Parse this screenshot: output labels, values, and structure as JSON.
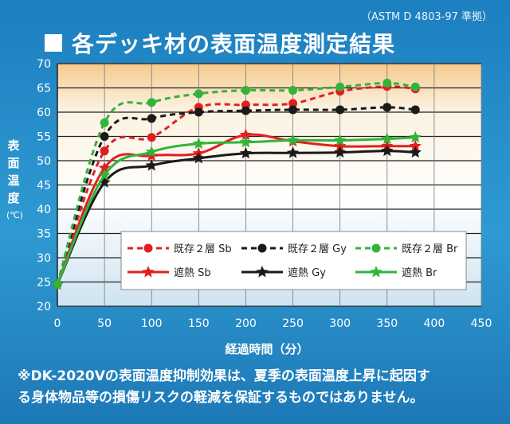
{
  "header": {
    "standard_note": "（ASTM D 4803-97 準拠）",
    "title": "各デッキ材の表面温度測定結果"
  },
  "footnote": {
    "line1": "※DK-2020Vの表面温度抑制効果は、夏季の表面温度上昇に起因す",
    "line2": "る身体物品等の損傷リスクの軽減を保証するものではありません。"
  },
  "chart_data": {
    "type": "line",
    "xlabel": "経過時間（分）",
    "ylabel": [
      "表",
      "面",
      "温",
      "度"
    ],
    "ylabel_unit": "(℃)",
    "xlim": [
      0,
      450
    ],
    "ylim": [
      20,
      70
    ],
    "x_ticks": [
      0,
      50,
      100,
      150,
      200,
      250,
      300,
      350,
      400,
      450
    ],
    "y_ticks": [
      20,
      25,
      30,
      35,
      40,
      45,
      50,
      55,
      60,
      65,
      70
    ],
    "grid": true,
    "legend_position": "bottom-right",
    "series": [
      {
        "name": "既存２層 Sb",
        "color": "#e02020",
        "style": "dashed",
        "marker": "circle",
        "x": [
          0,
          50,
          100,
          150,
          200,
          250,
          300,
          350,
          380
        ],
        "y": [
          24.5,
          52,
          54.8,
          61,
          61.5,
          61.8,
          64.3,
          65.3,
          64.8
        ]
      },
      {
        "name": "既存２層 Gy",
        "color": "#1a1a1a",
        "style": "dashed",
        "marker": "circle",
        "x": [
          0,
          50,
          100,
          150,
          200,
          250,
          300,
          350,
          380
        ],
        "y": [
          24.5,
          55,
          58.7,
          60,
          60.3,
          60.5,
          60.5,
          61,
          60.5
        ]
      },
      {
        "name": "既存２層 Br",
        "color": "#33b33a",
        "style": "dashed",
        "marker": "circle",
        "x": [
          0,
          50,
          100,
          150,
          200,
          250,
          300,
          350,
          380
        ],
        "y": [
          24.5,
          57.8,
          62,
          63.8,
          64.5,
          64.5,
          65.2,
          66,
          65.2
        ]
      },
      {
        "name": "遮熱 Sb",
        "color": "#e02020",
        "style": "solid",
        "marker": "star",
        "x": [
          0,
          50,
          100,
          150,
          200,
          250,
          300,
          350,
          380
        ],
        "y": [
          24.5,
          48.5,
          51,
          51.5,
          55.3,
          54,
          53,
          53,
          53
        ]
      },
      {
        "name": "遮熱 Gy",
        "color": "#1a1a1a",
        "style": "solid",
        "marker": "star",
        "x": [
          0,
          50,
          100,
          150,
          200,
          250,
          300,
          350,
          380
        ],
        "y": [
          24.5,
          45.5,
          49,
          50.5,
          51.5,
          51.6,
          51.7,
          52,
          51.7
        ]
      },
      {
        "name": "遮熱 Br",
        "color": "#33b33a",
        "style": "solid",
        "marker": "star",
        "x": [
          0,
          50,
          100,
          150,
          200,
          250,
          300,
          350,
          380
        ],
        "y": [
          24.5,
          47,
          51.8,
          53.5,
          53.8,
          54.2,
          54.2,
          54.5,
          54.8
        ]
      }
    ]
  }
}
